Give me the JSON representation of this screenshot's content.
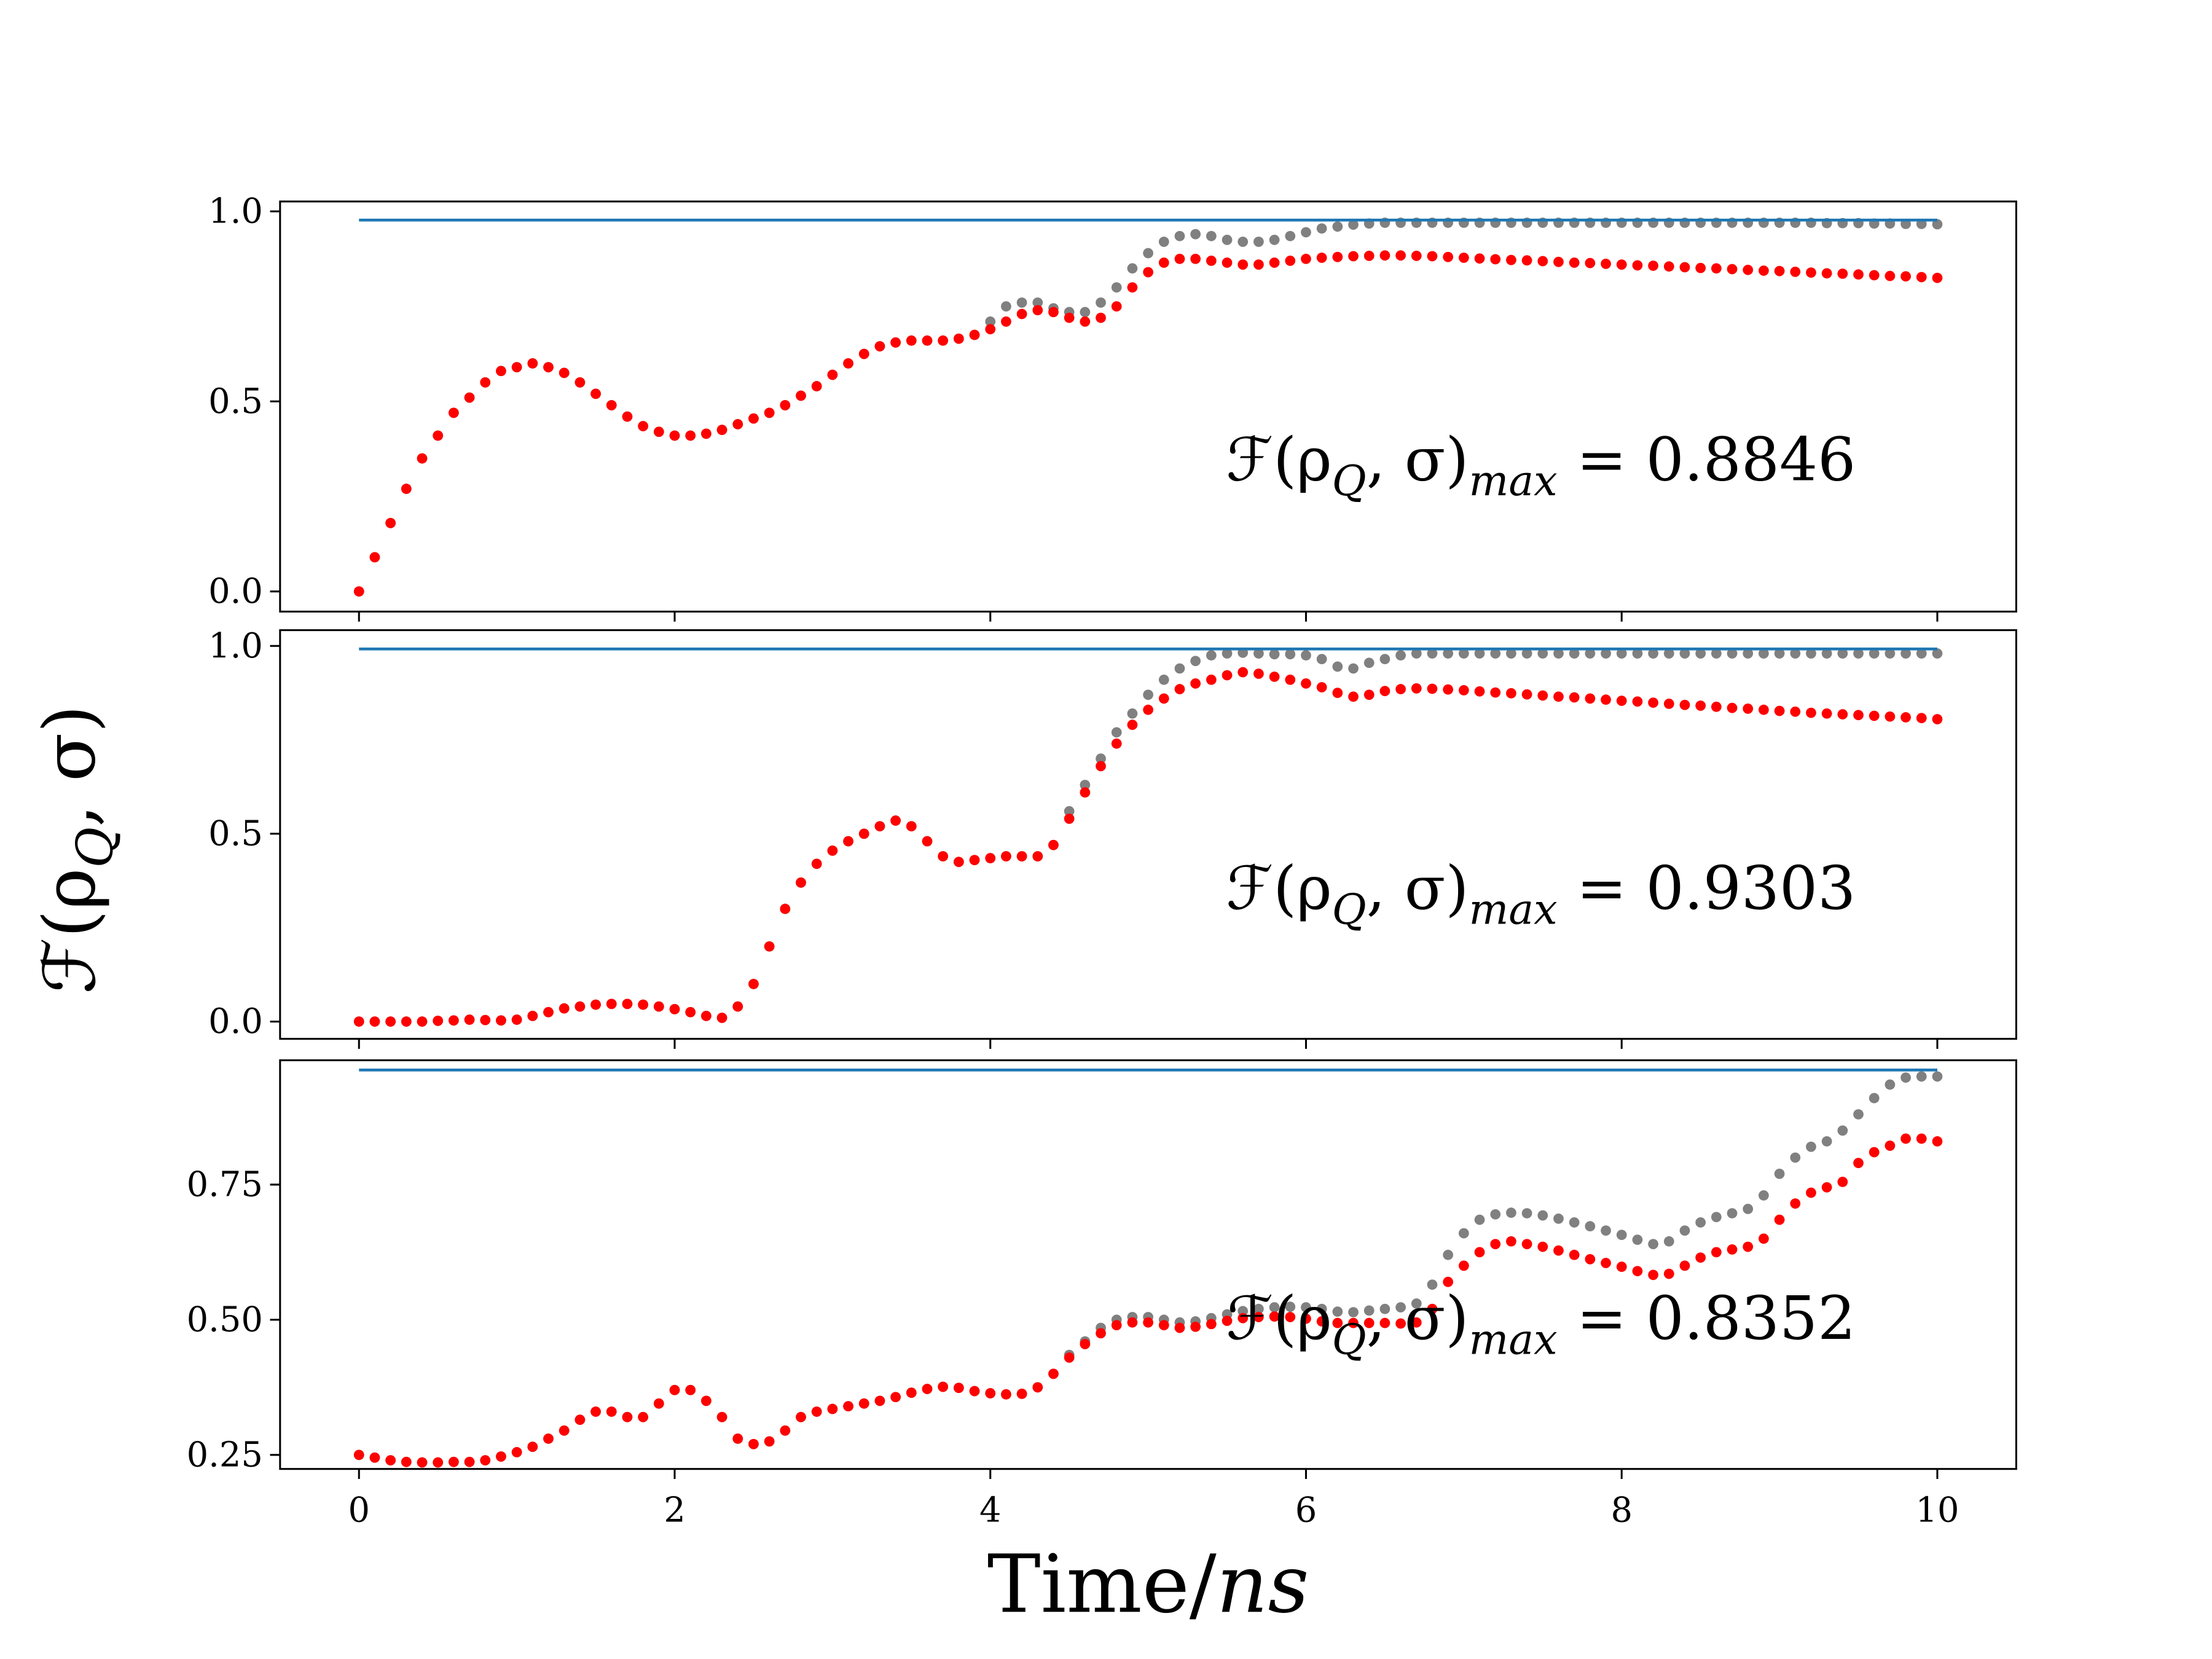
{
  "chart_data": [
    {
      "type": "scatter",
      "xlim": [
        -0.5,
        10.5
      ],
      "ylim": [
        -0.053,
        1.026
      ],
      "yticks": [
        {
          "value": 0,
          "label": "0.0"
        },
        0.5,
        {
          "value": 1,
          "label": "1.0"
        }
      ],
      "annotation": [
        "ℱ(ρ",
        "Q",
        ", σ)",
        "max",
        " = 0.8846"
      ],
      "x": [
        0,
        0.1,
        0.2,
        0.3,
        0.4,
        0.5,
        0.6,
        0.7,
        0.8,
        0.9,
        1,
        1.1,
        1.2,
        1.3,
        1.4,
        1.5,
        1.6,
        1.7,
        1.8,
        1.9,
        2,
        2.1,
        2.2,
        2.3,
        2.4,
        2.5,
        2.6,
        2.7,
        2.8,
        2.9,
        3,
        3.1,
        3.2,
        3.3,
        3.4,
        3.5,
        3.6,
        3.7,
        3.8,
        3.9,
        4,
        4.1,
        4.2,
        4.3,
        4.4,
        4.5,
        4.6,
        4.7,
        4.8,
        4.9,
        5,
        5.1,
        5.2,
        5.3,
        5.4,
        5.5,
        5.6,
        5.7,
        5.8,
        5.9,
        6,
        6.1,
        6.2,
        6.3,
        6.4,
        6.5,
        6.6,
        6.7,
        6.8,
        6.9,
        7,
        7.1,
        7.2,
        7.3,
        7.4,
        7.5,
        7.6,
        7.7,
        7.8,
        7.9,
        8,
        8.1,
        8.2,
        8.3,
        8.4,
        8.5,
        8.6,
        8.7,
        8.8,
        8.9,
        9,
        9.1,
        9.2,
        9.3,
        9.4,
        9.5,
        9.6,
        9.7,
        9.8,
        9.9,
        10
      ],
      "series": [
        {
          "style": "dots",
          "color": "#808080",
          "values": [
            0,
            0.09,
            0.18,
            0.27,
            0.35,
            0.41,
            0.47,
            0.51,
            0.55,
            0.58,
            0.59,
            0.6,
            0.59,
            0.575,
            0.55,
            0.52,
            0.49,
            0.46,
            0.435,
            0.42,
            0.41,
            0.41,
            0.415,
            0.425,
            0.44,
            0.455,
            0.47,
            0.49,
            0.515,
            0.54,
            0.57,
            0.6,
            0.625,
            0.645,
            0.655,
            0.66,
            0.66,
            0.66,
            0.665,
            0.675,
            0.71,
            0.75,
            0.76,
            0.76,
            0.745,
            0.735,
            0.735,
            0.76,
            0.8,
            0.85,
            0.89,
            0.92,
            0.935,
            0.94,
            0.935,
            0.925,
            0.92,
            0.92,
            0.925,
            0.935,
            0.945,
            0.955,
            0.96,
            0.965,
            0.968,
            0.97,
            0.97,
            0.97,
            0.97,
            0.97,
            0.97,
            0.97,
            0.97,
            0.97,
            0.97,
            0.97,
            0.97,
            0.97,
            0.97,
            0.97,
            0.97,
            0.97,
            0.97,
            0.97,
            0.97,
            0.97,
            0.97,
            0.97,
            0.97,
            0.97,
            0.97,
            0.97,
            0.97,
            0.969,
            0.969,
            0.969,
            0.968,
            0.968,
            0.967,
            0.967,
            0.966
          ]
        },
        {
          "style": "dots",
          "color": "#ff0000",
          "values": [
            0,
            0.09,
            0.18,
            0.27,
            0.35,
            0.41,
            0.47,
            0.51,
            0.55,
            0.58,
            0.59,
            0.6,
            0.59,
            0.575,
            0.55,
            0.52,
            0.49,
            0.46,
            0.435,
            0.42,
            0.41,
            0.41,
            0.415,
            0.425,
            0.44,
            0.455,
            0.47,
            0.49,
            0.515,
            0.54,
            0.57,
            0.6,
            0.625,
            0.645,
            0.655,
            0.66,
            0.66,
            0.66,
            0.665,
            0.675,
            0.69,
            0.71,
            0.73,
            0.74,
            0.735,
            0.72,
            0.71,
            0.72,
            0.75,
            0.8,
            0.84,
            0.865,
            0.875,
            0.875,
            0.87,
            0.865,
            0.86,
            0.86,
            0.865,
            0.87,
            0.875,
            0.878,
            0.88,
            0.882,
            0.883,
            0.884,
            0.884,
            0.883,
            0.882,
            0.88,
            0.878,
            0.876,
            0.874,
            0.872,
            0.871,
            0.869,
            0.867,
            0.865,
            0.864,
            0.862,
            0.86,
            0.858,
            0.857,
            0.855,
            0.853,
            0.851,
            0.85,
            0.848,
            0.846,
            0.844,
            0.843,
            0.841,
            0.839,
            0.837,
            0.836,
            0.834,
            0.832,
            0.83,
            0.829,
            0.827,
            0.825
          ]
        },
        {
          "style": "line",
          "color": "#1f77b4",
          "x": [
            0,
            10
          ],
          "values": [
            0.977,
            0.977
          ]
        }
      ]
    },
    {
      "type": "scatter",
      "xlim": [
        -0.5,
        10.5
      ],
      "ylim": [
        -0.046,
        1.042
      ],
      "yticks": [
        {
          "value": 0,
          "label": "0.0"
        },
        0.5,
        {
          "value": 1,
          "label": "1.0"
        }
      ],
      "ylabel": [
        "ℱ(ρ",
        "Q",
        ", σ)"
      ],
      "annotation": [
        "ℱ(ρ",
        "Q",
        ", σ)",
        "max",
        " = 0.9303"
      ],
      "x": [
        0,
        0.1,
        0.2,
        0.3,
        0.4,
        0.5,
        0.6,
        0.7,
        0.8,
        0.9,
        1,
        1.1,
        1.2,
        1.3,
        1.4,
        1.5,
        1.6,
        1.7,
        1.8,
        1.9,
        2,
        2.1,
        2.2,
        2.3,
        2.4,
        2.5,
        2.6,
        2.7,
        2.8,
        2.9,
        3,
        3.1,
        3.2,
        3.3,
        3.4,
        3.5,
        3.6,
        3.7,
        3.8,
        3.9,
        4,
        4.1,
        4.2,
        4.3,
        4.4,
        4.5,
        4.6,
        4.7,
        4.8,
        4.9,
        5,
        5.1,
        5.2,
        5.3,
        5.4,
        5.5,
        5.6,
        5.7,
        5.8,
        5.9,
        6,
        6.1,
        6.2,
        6.3,
        6.4,
        6.5,
        6.6,
        6.7,
        6.8,
        6.9,
        7,
        7.1,
        7.2,
        7.3,
        7.4,
        7.5,
        7.6,
        7.7,
        7.8,
        7.9,
        8,
        8.1,
        8.2,
        8.3,
        8.4,
        8.5,
        8.6,
        8.7,
        8.8,
        8.9,
        9,
        9.1,
        9.2,
        9.3,
        9.4,
        9.5,
        9.6,
        9.7,
        9.8,
        9.9,
        10
      ],
      "series": [
        {
          "style": "dots",
          "color": "#808080",
          "values": [
            0,
            0,
            0,
            0,
            0,
            0.002,
            0.003,
            0.005,
            0.004,
            0.003,
            0.005,
            0.015,
            0.025,
            0.035,
            0.04,
            0.045,
            0.047,
            0.047,
            0.045,
            0.04,
            0.033,
            0.025,
            0.015,
            0.01,
            0.04,
            0.1,
            0.2,
            0.3,
            0.37,
            0.42,
            0.455,
            0.48,
            0.5,
            0.52,
            0.535,
            0.52,
            0.48,
            0.44,
            0.425,
            0.43,
            0.435,
            0.44,
            0.44,
            0.44,
            0.47,
            0.56,
            0.63,
            0.7,
            0.77,
            0.82,
            0.87,
            0.91,
            0.94,
            0.96,
            0.975,
            0.98,
            0.982,
            0.98,
            0.978,
            0.978,
            0.975,
            0.965,
            0.945,
            0.94,
            0.955,
            0.965,
            0.975,
            0.98,
            0.98,
            0.98,
            0.98,
            0.98,
            0.98,
            0.98,
            0.98,
            0.98,
            0.98,
            0.98,
            0.98,
            0.98,
            0.98,
            0.98,
            0.98,
            0.98,
            0.98,
            0.98,
            0.98,
            0.98,
            0.98,
            0.98,
            0.98,
            0.98,
            0.98,
            0.98,
            0.98,
            0.98,
            0.98,
            0.98,
            0.98,
            0.98,
            0.98
          ]
        },
        {
          "style": "dots",
          "color": "#ff0000",
          "values": [
            0,
            0,
            0,
            0,
            0,
            0.002,
            0.003,
            0.005,
            0.004,
            0.003,
            0.005,
            0.015,
            0.025,
            0.035,
            0.04,
            0.045,
            0.047,
            0.047,
            0.045,
            0.04,
            0.033,
            0.025,
            0.015,
            0.01,
            0.04,
            0.1,
            0.2,
            0.3,
            0.37,
            0.42,
            0.455,
            0.48,
            0.5,
            0.52,
            0.535,
            0.52,
            0.48,
            0.44,
            0.425,
            0.43,
            0.435,
            0.44,
            0.44,
            0.44,
            0.47,
            0.54,
            0.61,
            0.68,
            0.74,
            0.79,
            0.83,
            0.86,
            0.885,
            0.9,
            0.91,
            0.922,
            0.93,
            0.926,
            0.918,
            0.91,
            0.9,
            0.89,
            0.875,
            0.865,
            0.87,
            0.88,
            0.885,
            0.887,
            0.886,
            0.884,
            0.882,
            0.879,
            0.876,
            0.874,
            0.871,
            0.868,
            0.865,
            0.863,
            0.86,
            0.857,
            0.854,
            0.852,
            0.849,
            0.846,
            0.843,
            0.841,
            0.838,
            0.835,
            0.833,
            0.83,
            0.827,
            0.825,
            0.822,
            0.82,
            0.818,
            0.816,
            0.814,
            0.812,
            0.81,
            0.808,
            0.805
          ]
        },
        {
          "style": "line",
          "color": "#1f77b4",
          "x": [
            0,
            10
          ],
          "values": [
            0.992,
            0.992
          ]
        }
      ]
    },
    {
      "type": "scatter",
      "xlim": [
        -0.5,
        10.5
      ],
      "ylim": [
        0.224,
        0.98
      ],
      "yticks": [
        0.25,
        {
          "value": 0.5,
          "label": "0.50"
        },
        0.75
      ],
      "xticks": [
        0,
        2,
        4,
        6,
        8,
        10
      ],
      "xlabel": [
        "Time/",
        "ns"
      ],
      "annotation": [
        "ℱ(ρ",
        "Q",
        ", σ)",
        "max",
        " = 0.8352"
      ],
      "x": [
        0,
        0.1,
        0.2,
        0.3,
        0.4,
        0.5,
        0.6,
        0.7,
        0.8,
        0.9,
        1,
        1.1,
        1.2,
        1.3,
        1.4,
        1.5,
        1.6,
        1.7,
        1.8,
        1.9,
        2,
        2.1,
        2.2,
        2.3,
        2.4,
        2.5,
        2.6,
        2.7,
        2.8,
        2.9,
        3,
        3.1,
        3.2,
        3.3,
        3.4,
        3.5,
        3.6,
        3.7,
        3.8,
        3.9,
        4,
        4.1,
        4.2,
        4.3,
        4.4,
        4.5,
        4.6,
        4.7,
        4.8,
        4.9,
        5,
        5.1,
        5.2,
        5.3,
        5.4,
        5.5,
        5.6,
        5.7,
        5.8,
        5.9,
        6,
        6.1,
        6.2,
        6.3,
        6.4,
        6.5,
        6.6,
        6.7,
        6.8,
        6.9,
        7,
        7.1,
        7.2,
        7.3,
        7.4,
        7.5,
        7.6,
        7.7,
        7.8,
        7.9,
        8,
        8.1,
        8.2,
        8.3,
        8.4,
        8.5,
        8.6,
        8.7,
        8.8,
        8.9,
        9,
        9.1,
        9.2,
        9.3,
        9.4,
        9.5,
        9.6,
        9.7,
        9.8,
        9.9,
        10
      ],
      "series": [
        {
          "style": "dots",
          "color": "#808080",
          "values": [
            0.25,
            0.245,
            0.24,
            0.237,
            0.236,
            0.236,
            0.237,
            0.237,
            0.24,
            0.247,
            0.255,
            0.265,
            0.28,
            0.295,
            0.315,
            0.33,
            0.33,
            0.32,
            0.32,
            0.345,
            0.37,
            0.37,
            0.35,
            0.32,
            0.28,
            0.27,
            0.275,
            0.295,
            0.32,
            0.33,
            0.335,
            0.34,
            0.345,
            0.35,
            0.357,
            0.365,
            0.372,
            0.376,
            0.374,
            0.368,
            0.364,
            0.362,
            0.363,
            0.375,
            0.4,
            0.435,
            0.46,
            0.485,
            0.5,
            0.505,
            0.505,
            0.5,
            0.495,
            0.497,
            0.503,
            0.51,
            0.516,
            0.52,
            0.523,
            0.524,
            0.523,
            0.52,
            0.515,
            0.514,
            0.517,
            0.52,
            0.523,
            0.53,
            0.565,
            0.62,
            0.66,
            0.685,
            0.695,
            0.698,
            0.697,
            0.693,
            0.687,
            0.68,
            0.673,
            0.665,
            0.657,
            0.648,
            0.64,
            0.645,
            0.665,
            0.68,
            0.69,
            0.697,
            0.705,
            0.73,
            0.77,
            0.8,
            0.82,
            0.83,
            0.85,
            0.88,
            0.91,
            0.935,
            0.948,
            0.95,
            0.95
          ]
        },
        {
          "style": "dots",
          "color": "#ff0000",
          "values": [
            0.25,
            0.245,
            0.24,
            0.237,
            0.236,
            0.236,
            0.237,
            0.237,
            0.24,
            0.247,
            0.255,
            0.265,
            0.28,
            0.295,
            0.315,
            0.33,
            0.33,
            0.32,
            0.32,
            0.345,
            0.37,
            0.37,
            0.35,
            0.32,
            0.28,
            0.27,
            0.275,
            0.295,
            0.32,
            0.33,
            0.335,
            0.34,
            0.345,
            0.35,
            0.357,
            0.365,
            0.372,
            0.376,
            0.374,
            0.368,
            0.364,
            0.362,
            0.363,
            0.375,
            0.4,
            0.43,
            0.455,
            0.475,
            0.49,
            0.495,
            0.495,
            0.49,
            0.485,
            0.487,
            0.492,
            0.498,
            0.503,
            0.505,
            0.506,
            0.505,
            0.502,
            0.497,
            0.494,
            0.494,
            0.494,
            0.494,
            0.493,
            0.495,
            0.52,
            0.57,
            0.6,
            0.625,
            0.64,
            0.645,
            0.64,
            0.635,
            0.628,
            0.62,
            0.612,
            0.605,
            0.598,
            0.59,
            0.583,
            0.585,
            0.6,
            0.615,
            0.625,
            0.63,
            0.635,
            0.65,
            0.685,
            0.715,
            0.735,
            0.745,
            0.755,
            0.79,
            0.81,
            0.822,
            0.835,
            0.835,
            0.83
          ]
        },
        {
          "style": "line",
          "color": "#1f77b4",
          "x": [
            0,
            10
          ],
          "values": [
            0.962,
            0.962
          ]
        }
      ]
    }
  ]
}
